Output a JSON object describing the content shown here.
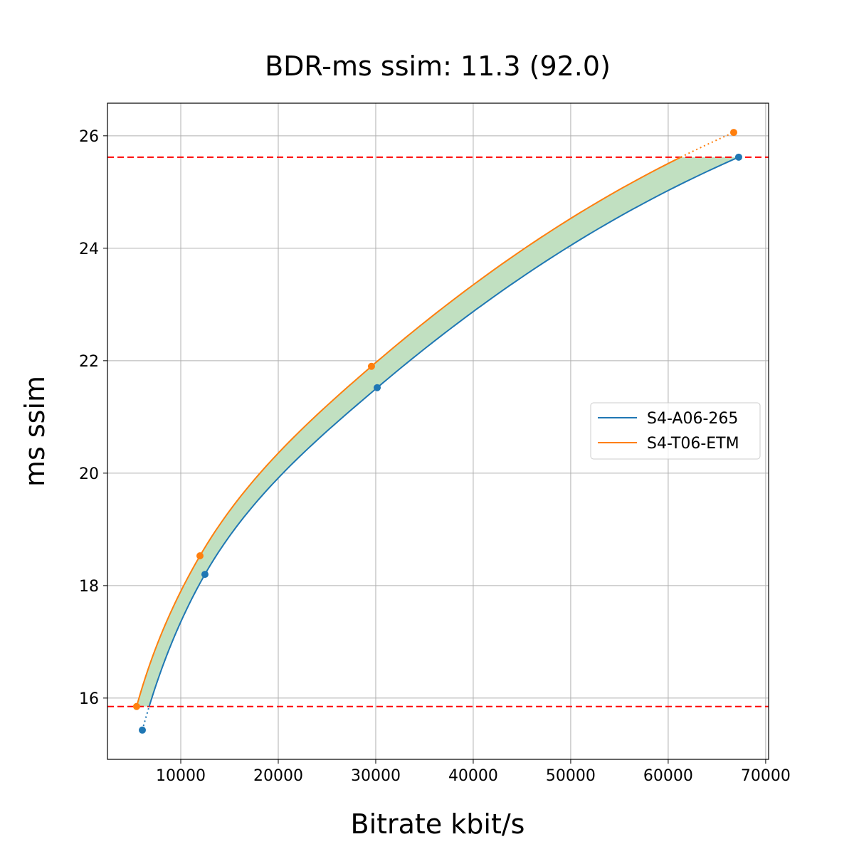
{
  "chart_data": {
    "type": "line",
    "title": "BDR-ms ssim: 11.3 (92.0)",
    "xlabel": "Bitrate kbit/s",
    "ylabel": "ms ssim",
    "xlim": [
      2480,
      70300
    ],
    "ylim": [
      14.91,
      26.58
    ],
    "xticks": [
      10000,
      20000,
      30000,
      40000,
      50000,
      60000,
      70000
    ],
    "yticks": [
      16,
      18,
      20,
      22,
      24,
      26
    ],
    "grid": true,
    "legend_position": "right",
    "series": [
      {
        "name": "S4-A06-265",
        "color": "#1f77b4",
        "x": [
          6058,
          12480,
          30150,
          67230
        ],
        "y": [
          15.43,
          18.2,
          21.52,
          25.62
        ]
      },
      {
        "name": "S4-T06-ETM",
        "color": "#ff7f0e",
        "x": [
          5470,
          11970,
          29560,
          66720
        ],
        "y": [
          15.85,
          18.53,
          21.9,
          26.06
        ]
      }
    ],
    "hlines": {
      "values": [
        15.85,
        25.62
      ],
      "color": "#ff0000",
      "style": "dashed"
    },
    "fill": {
      "between_series": true,
      "color": "#c1e0c1",
      "y_range": [
        15.85,
        25.62
      ]
    }
  }
}
